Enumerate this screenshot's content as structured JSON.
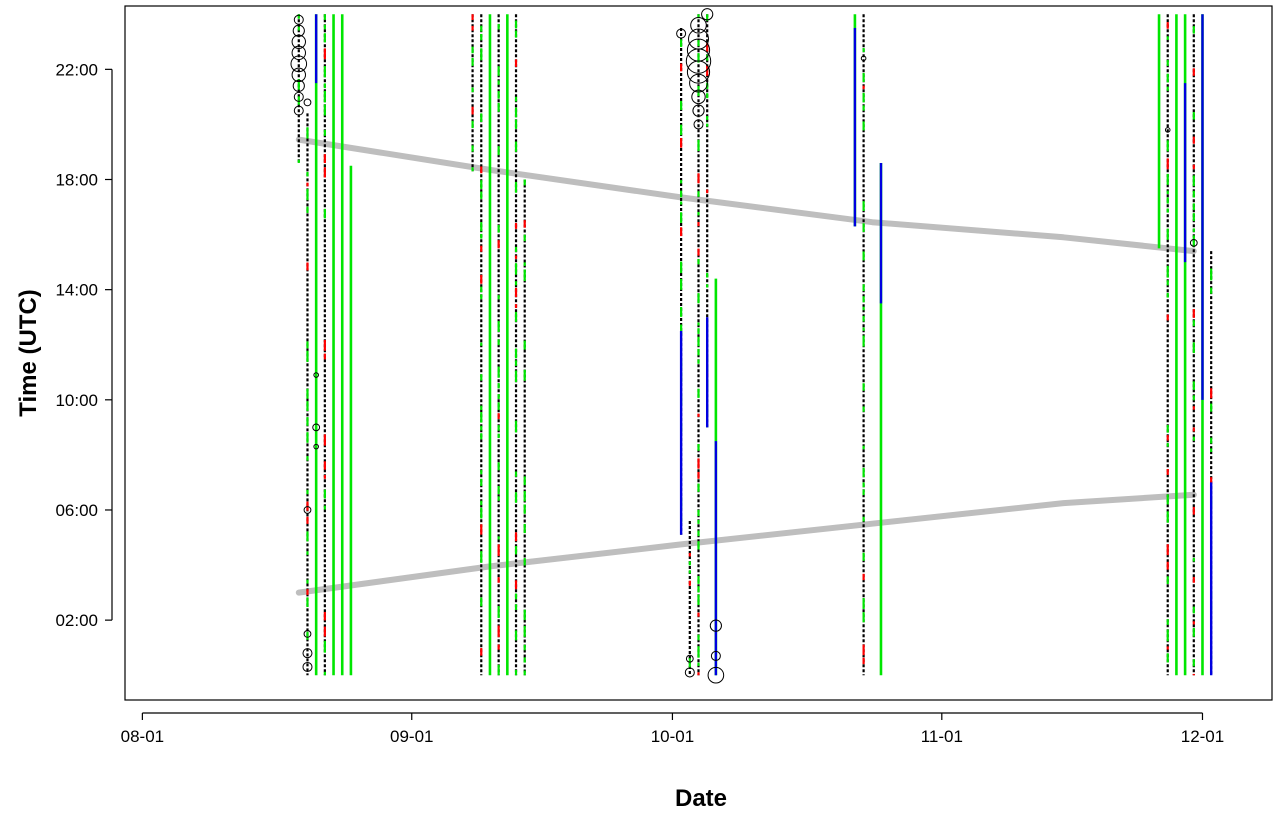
{
  "chart_data": {
    "type": "scatter",
    "title": "",
    "xlabel": "Date",
    "ylabel": "Time (UTC)",
    "x_axis": {
      "type": "date",
      "ticks": [
        "08-01",
        "09-01",
        "10-01",
        "11-01",
        "12-01"
      ],
      "tick_dates": [
        "2023-08-01",
        "2023-09-01",
        "2023-10-01",
        "2023-11-01",
        "2023-12-01"
      ],
      "range": [
        "2023-07-30",
        "2023-12-09"
      ]
    },
    "y_axis": {
      "unit": "hours UTC",
      "ticks": [
        "02:00",
        "06:00",
        "10:00",
        "14:00",
        "18:00",
        "22:00"
      ],
      "tick_hours": [
        2,
        6,
        10,
        14,
        18,
        22
      ],
      "range": [
        -0.9,
        24.3
      ]
    },
    "grid": false,
    "legend": "none",
    "colors": {
      "green": "#00e600",
      "blue": "#0000e0",
      "red": "#ff0000",
      "black": "#000000",
      "twilight": "#bebebe"
    },
    "series": [
      {
        "kind": "line",
        "color": "#bebebe",
        "points": [
          {
            "x": "2023-08-19",
            "y": 19.45
          },
          {
            "x": "2023-09-10",
            "y": 18.35
          },
          {
            "x": "2023-10-02",
            "y": 17.35
          },
          {
            "x": "2023-10-24",
            "y": 16.45
          },
          {
            "x": "2023-11-15",
            "y": 15.9
          },
          {
            "x": "2023-11-30",
            "y": 15.4
          }
        ]
      },
      {
        "kind": "line",
        "color": "#bebebe",
        "points": [
          {
            "x": "2023-08-19",
            "y": 3.0
          },
          {
            "x": "2023-09-10",
            "y": 3.95
          },
          {
            "x": "2023-10-02",
            "y": 4.75
          },
          {
            "x": "2023-10-24",
            "y": 5.5
          },
          {
            "x": "2023-11-15",
            "y": 6.25
          },
          {
            "x": "2023-11-30",
            "y": 6.55
          }
        ]
      },
      {
        "kind": "detection-columns",
        "columns": [
          {
            "x": "2023-08-19",
            "y0": 18.6,
            "y1": 24.0,
            "style": "mixed"
          },
          {
            "x": "2023-08-20",
            "y0": 0.0,
            "y1": 20.4,
            "style": "mixed"
          },
          {
            "x": "2023-08-21",
            "y0": 0.0,
            "y1": 24.0,
            "style": "green",
            "accent": [
              [
                21.5,
                24.0,
                "blue"
              ]
            ]
          },
          {
            "x": "2023-08-22",
            "y0": 0.0,
            "y1": 24.0,
            "style": "mixed"
          },
          {
            "x": "2023-08-23",
            "y0": 0.0,
            "y1": 24.0,
            "style": "green"
          },
          {
            "x": "2023-08-24",
            "y0": 0.0,
            "y1": 24.0,
            "style": "green"
          },
          {
            "x": "2023-08-25",
            "y0": 0.0,
            "y1": 18.5,
            "style": "green"
          },
          {
            "x": "2023-09-08",
            "y0": 18.3,
            "y1": 24.0,
            "style": "mixed"
          },
          {
            "x": "2023-09-09",
            "y0": 0.0,
            "y1": 24.0,
            "style": "mixed"
          },
          {
            "x": "2023-09-10",
            "y0": 0.0,
            "y1": 24.0,
            "style": "green"
          },
          {
            "x": "2023-09-11",
            "y0": 0.0,
            "y1": 24.0,
            "style": "mixed"
          },
          {
            "x": "2023-09-12",
            "y0": 0.0,
            "y1": 24.0,
            "style": "green"
          },
          {
            "x": "2023-09-13",
            "y0": 0.0,
            "y1": 24.0,
            "style": "mixed"
          },
          {
            "x": "2023-09-14",
            "y0": 0.0,
            "y1": 18.0,
            "style": "mixed"
          },
          {
            "x": "2023-10-02",
            "y0": 5.1,
            "y1": 23.5,
            "style": "mixed",
            "accent": [
              [
                5.1,
                12.5,
                "blue"
              ]
            ]
          },
          {
            "x": "2023-10-03",
            "y0": 0.0,
            "y1": 5.6,
            "style": "mixed"
          },
          {
            "x": "2023-10-04",
            "y0": 0.0,
            "y1": 24.0,
            "style": "mixed"
          },
          {
            "x": "2023-10-05",
            "y0": 9.0,
            "y1": 24.0,
            "style": "mixed",
            "accent": [
              [
                9.0,
                13.0,
                "blue"
              ]
            ]
          },
          {
            "x": "2023-10-06",
            "y0": 0.0,
            "y1": 14.4,
            "style": "green",
            "accent": [
              [
                0.0,
                8.5,
                "blue"
              ]
            ]
          },
          {
            "x": "2023-10-22",
            "y0": 16.3,
            "y1": 24.0,
            "style": "green",
            "accent": [
              [
                16.3,
                23.5,
                "blue"
              ]
            ]
          },
          {
            "x": "2023-10-23",
            "y0": 0.0,
            "y1": 24.0,
            "style": "mixed"
          },
          {
            "x": "2023-10-25",
            "y0": 0.0,
            "y1": 18.6,
            "style": "green",
            "accent": [
              [
                13.5,
                18.6,
                "blue"
              ]
            ]
          },
          {
            "x": "2023-11-26",
            "y0": 15.5,
            "y1": 24.0,
            "style": "green"
          },
          {
            "x": "2023-11-27",
            "y0": 0.0,
            "y1": 24.0,
            "style": "mixed"
          },
          {
            "x": "2023-11-28",
            "y0": 0.0,
            "y1": 24.0,
            "style": "green"
          },
          {
            "x": "2023-11-29",
            "y0": 0.0,
            "y1": 24.0,
            "style": "green",
            "accent": [
              [
                15.0,
                21.5,
                "blue"
              ]
            ]
          },
          {
            "x": "2023-11-30",
            "y0": 0.0,
            "y1": 24.0,
            "style": "mixed"
          },
          {
            "x": "2023-12-01",
            "y0": 0.0,
            "y1": 24.0,
            "style": "green",
            "accent": [
              [
                10.0,
                24.0,
                "blue"
              ]
            ]
          },
          {
            "x": "2023-12-02",
            "y0": 0.0,
            "y1": 15.4,
            "style": "mixed",
            "accent": [
              [
                0.0,
                7.0,
                "blue"
              ]
            ]
          }
        ]
      },
      {
        "kind": "circles",
        "color": "#000000",
        "points": [
          {
            "x": "2023-08-19",
            "y": 23.8,
            "size": 3
          },
          {
            "x": "2023-08-19",
            "y": 23.4,
            "size": 4
          },
          {
            "x": "2023-08-19",
            "y": 23.0,
            "size": 5
          },
          {
            "x": "2023-08-19",
            "y": 22.6,
            "size": 5
          },
          {
            "x": "2023-08-19",
            "y": 22.2,
            "size": 6
          },
          {
            "x": "2023-08-19",
            "y": 21.8,
            "size": 5
          },
          {
            "x": "2023-08-19",
            "y": 21.4,
            "size": 4
          },
          {
            "x": "2023-08-19",
            "y": 21.0,
            "size": 3
          },
          {
            "x": "2023-08-19",
            "y": 20.5,
            "size": 3
          },
          {
            "x": "2023-08-20",
            "y": 20.8,
            "size": 2
          },
          {
            "x": "2023-08-20",
            "y": 6.0,
            "size": 2
          },
          {
            "x": "2023-08-20",
            "y": 1.5,
            "size": 2
          },
          {
            "x": "2023-08-20",
            "y": 0.8,
            "size": 3
          },
          {
            "x": "2023-08-20",
            "y": 0.3,
            "size": 3
          },
          {
            "x": "2023-08-21",
            "y": 10.9,
            "size": 1
          },
          {
            "x": "2023-08-21",
            "y": 9.0,
            "size": 2
          },
          {
            "x": "2023-08-21",
            "y": 8.3,
            "size": 1
          },
          {
            "x": "2023-10-02",
            "y": 23.3,
            "size": 3
          },
          {
            "x": "2023-10-04",
            "y": 23.6,
            "size": 6
          },
          {
            "x": "2023-10-04",
            "y": 23.1,
            "size": 8
          },
          {
            "x": "2023-10-04",
            "y": 22.7,
            "size": 9
          },
          {
            "x": "2023-10-04",
            "y": 22.3,
            "size": 10
          },
          {
            "x": "2023-10-04",
            "y": 21.9,
            "size": 9
          },
          {
            "x": "2023-10-04",
            "y": 21.5,
            "size": 7
          },
          {
            "x": "2023-10-04",
            "y": 21.0,
            "size": 5
          },
          {
            "x": "2023-10-04",
            "y": 20.5,
            "size": 4
          },
          {
            "x": "2023-10-04",
            "y": 20.0,
            "size": 3
          },
          {
            "x": "2023-10-05",
            "y": 24.0,
            "size": 4
          },
          {
            "x": "2023-10-03",
            "y": 0.6,
            "size": 2
          },
          {
            "x": "2023-10-03",
            "y": 0.1,
            "size": 3
          },
          {
            "x": "2023-10-06",
            "y": 1.8,
            "size": 4
          },
          {
            "x": "2023-10-06",
            "y": 0.7,
            "size": 3
          },
          {
            "x": "2023-10-06",
            "y": 0.0,
            "size": 6
          },
          {
            "x": "2023-10-23",
            "y": 22.4,
            "size": 1
          },
          {
            "x": "2023-11-30",
            "y": 15.7,
            "size": 2
          },
          {
            "x": "2023-11-27",
            "y": 19.8,
            "size": 1
          }
        ]
      }
    ]
  }
}
